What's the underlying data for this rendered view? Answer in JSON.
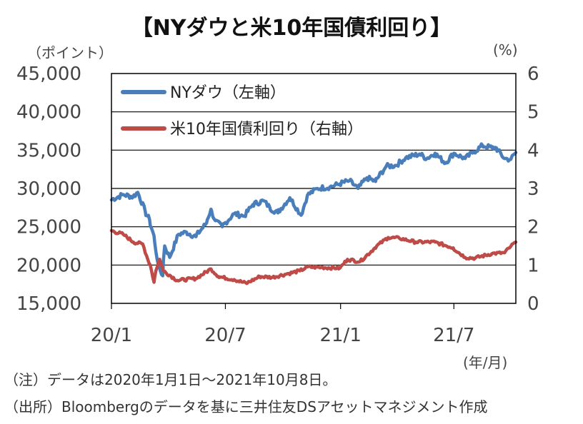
{
  "title": "【NYダウと米10年国債利回り】",
  "left_unit": "（ポイント）",
  "right_unit": "(%)",
  "x_unit": "(年/月)",
  "notes": {
    "note1": "（注）データは2020年1月1日～2021年10月8日。",
    "note2": "（出所）Bloombergのデータを基に三井住友DSアセットマネジメント作成"
  },
  "colors": {
    "dow": "#4a7ebb",
    "yield": "#be4b48",
    "grid": "#000000"
  },
  "chart_data": {
    "type": "line",
    "title": "【NYダウと米10年国債利回り】",
    "x_ticks": [
      "20/1",
      "20/7",
      "21/1",
      "21/7"
    ],
    "x_tick_dates": [
      "2020-01-01",
      "2020-07-01",
      "2021-01-01",
      "2021-07-01"
    ],
    "x_range": [
      "2020-01-01",
      "2021-10-08"
    ],
    "y_left": {
      "label": "（ポイント）",
      "min": 15000,
      "max": 45000,
      "step": 5000,
      "ticks": [
        "15,000",
        "20,000",
        "25,000",
        "30,000",
        "35,000",
        "40,000",
        "45,000"
      ]
    },
    "y_right": {
      "label": "(%)",
      "min": 0,
      "max": 6,
      "step": 1,
      "ticks": [
        "0",
        "1",
        "2",
        "3",
        "4",
        "5",
        "6"
      ]
    },
    "grid": true,
    "legend_position": "top-left",
    "series": [
      {
        "name": "NYダウ（左軸）",
        "axis": "left",
        "x": [
          "2020-01-01",
          "2020-01-20",
          "2020-02-05",
          "2020-02-12",
          "2020-02-24",
          "2020-03-02",
          "2020-03-09",
          "2020-03-16",
          "2020-03-23",
          "2020-03-26",
          "2020-04-03",
          "2020-04-17",
          "2020-04-30",
          "2020-05-15",
          "2020-06-01",
          "2020-06-08",
          "2020-06-15",
          "2020-06-26",
          "2020-07-15",
          "2020-07-31",
          "2020-08-14",
          "2020-08-31",
          "2020-09-10",
          "2020-09-23",
          "2020-10-12",
          "2020-10-30",
          "2020-11-09",
          "2020-11-25",
          "2020-12-15",
          "2020-12-31",
          "2021-01-15",
          "2021-01-29",
          "2021-02-12",
          "2021-02-26",
          "2021-03-15",
          "2021-03-31",
          "2021-04-15",
          "2021-05-07",
          "2021-05-19",
          "2021-06-01",
          "2021-06-18",
          "2021-07-01",
          "2021-07-19",
          "2021-08-02",
          "2021-08-16",
          "2021-08-31",
          "2021-09-07",
          "2021-09-20",
          "2021-09-30",
          "2021-10-08"
        ],
        "values": [
          28500,
          29200,
          28900,
          29500,
          27000,
          25900,
          23800,
          20000,
          18600,
          22500,
          21000,
          24000,
          24300,
          23700,
          25500,
          27300,
          25800,
          25000,
          26700,
          26400,
          27900,
          28400,
          27500,
          26800,
          28800,
          26500,
          29100,
          30000,
          30200,
          30600,
          31000,
          30000,
          31400,
          30900,
          32900,
          33000,
          34000,
          34500,
          33900,
          34600,
          33300,
          34600,
          33900,
          34800,
          35600,
          35300,
          35300,
          33900,
          33800,
          34700
        ]
      },
      {
        "name": "米10年国債利回り（右軸）",
        "axis": "right",
        "x": [
          "2020-01-01",
          "2020-01-20",
          "2020-02-05",
          "2020-02-20",
          "2020-02-28",
          "2020-03-03",
          "2020-03-09",
          "2020-03-12",
          "2020-03-18",
          "2020-03-24",
          "2020-04-15",
          "2020-05-15",
          "2020-06-08",
          "2020-06-20",
          "2020-07-15",
          "2020-08-04",
          "2020-08-25",
          "2020-09-15",
          "2020-10-10",
          "2020-10-28",
          "2020-11-09",
          "2020-12-01",
          "2020-12-31",
          "2021-01-12",
          "2021-02-01",
          "2021-02-25",
          "2021-03-18",
          "2021-04-05",
          "2021-05-01",
          "2021-06-01",
          "2021-06-30",
          "2021-07-19",
          "2021-08-04",
          "2021-08-31",
          "2021-09-20",
          "2021-09-30",
          "2021-10-08"
        ],
        "values": [
          1.9,
          1.8,
          1.6,
          1.55,
          1.15,
          1.0,
          0.55,
          0.85,
          1.15,
          0.85,
          0.6,
          0.65,
          0.9,
          0.7,
          0.62,
          0.52,
          0.7,
          0.68,
          0.78,
          0.85,
          0.95,
          0.94,
          0.92,
          1.15,
          1.09,
          1.45,
          1.72,
          1.7,
          1.6,
          1.6,
          1.45,
          1.2,
          1.18,
          1.3,
          1.32,
          1.49,
          1.6
        ]
      }
    ]
  }
}
